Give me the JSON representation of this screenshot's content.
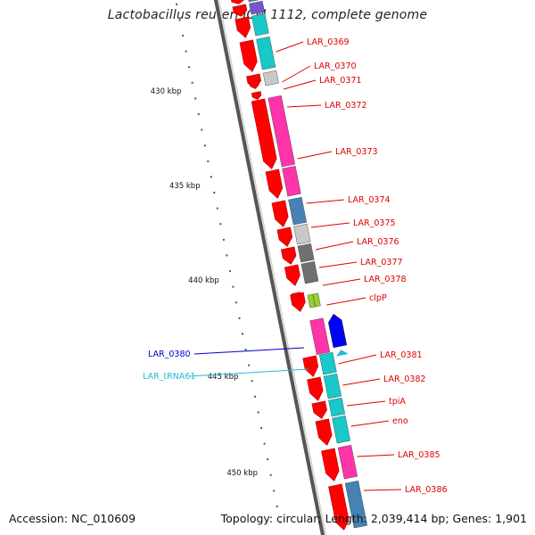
{
  "title": "Lactobacillus reuteri JCM 1112, complete genome",
  "accession_text": "Accession: NC_010609",
  "summary_text": "Topology: circular; Length: 2,039,414 bp; Genes: 1,901",
  "colors": {
    "backbone_dark": "#555555",
    "backbone_light": "#dddddd",
    "tick": "#1a7a1a",
    "cds_arrow": "#ff0000",
    "cds_arrow_dark": "#b80000",
    "label": "#dd0000",
    "label_blue": "#0000cc",
    "label_trna": "#22b8d8",
    "cog_cyan": "#19c8c8",
    "cog_pink": "#ff33aa",
    "cog_steel": "#4682b4",
    "cog_lightgray": "#c8c8c8",
    "cog_darkgray": "#707070",
    "cog_lime": "#9acd32",
    "cog_blue": "#0000ff",
    "cog_purple": "#7755cc"
  },
  "scale_labels": [
    {
      "text": "430 kbp"
    },
    {
      "text": "435 kbp"
    },
    {
      "text": "440 kbp"
    },
    {
      "text": "445 kbp"
    },
    {
      "text": "450 kbp"
    }
  ],
  "genes": [
    {
      "label": "LAR_0369"
    },
    {
      "label": "LAR_0370"
    },
    {
      "label": "LAR_0371"
    },
    {
      "label": "LAR_0372"
    },
    {
      "label": "LAR_0373"
    },
    {
      "label": "LAR_0374"
    },
    {
      "label": "LAR_0375"
    },
    {
      "label": "LAR_0376"
    },
    {
      "label": "LAR_0377"
    },
    {
      "label": "LAR_0378"
    },
    {
      "label": "clpP"
    },
    {
      "label": "LAR_0380"
    },
    {
      "label": "LAR_tRNA61"
    },
    {
      "label": "LAR_0381"
    },
    {
      "label": "LAR_0382"
    },
    {
      "label": "tpiA"
    },
    {
      "label": "eno"
    },
    {
      "label": "LAR_0385"
    },
    {
      "label": "LAR_0386"
    }
  ]
}
